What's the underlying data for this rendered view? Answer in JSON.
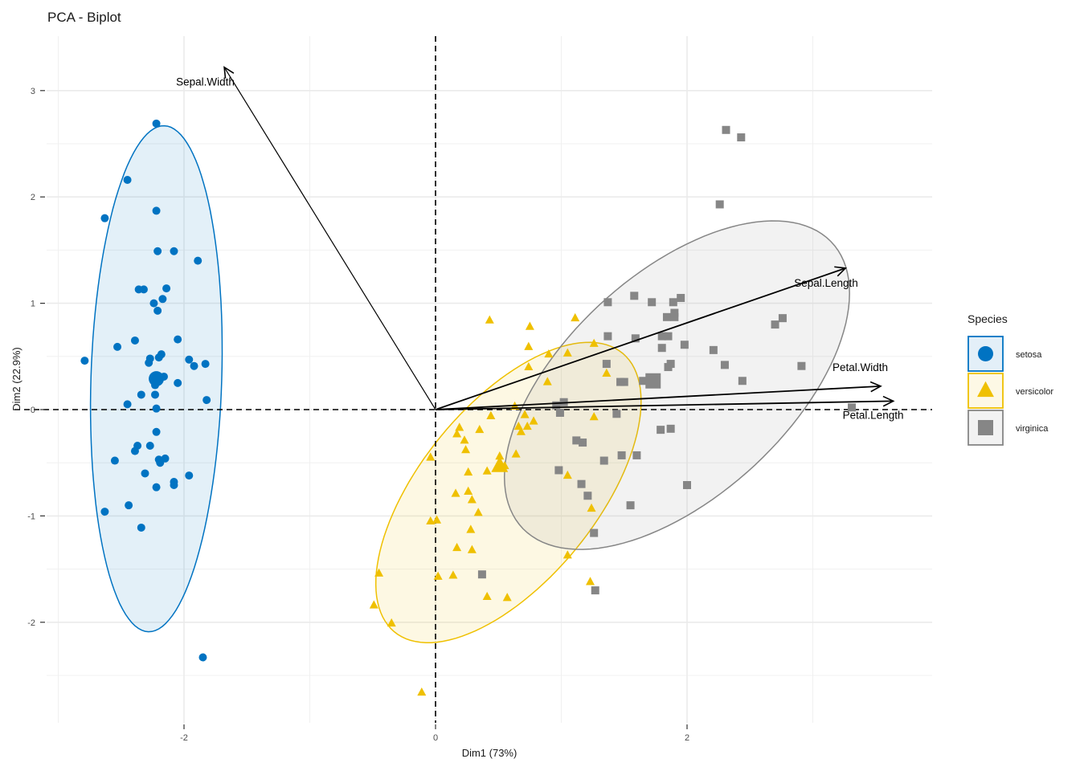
{
  "chart_data": {
    "type": "scatter",
    "title": "PCA - Biplot",
    "xlabel": "Dim1 (73%)",
    "ylabel": "Dim2 (22.9%)",
    "xlim": [
      -3.0,
      3.9
    ],
    "ylim": [
      -2.9,
      3.5
    ],
    "x_ticks": [
      -2,
      0,
      2
    ],
    "y_ticks": [
      -2,
      -1,
      0,
      1,
      2,
      3
    ],
    "x_minor_grid": [
      -3,
      -1,
      1,
      3
    ],
    "y_minor_grid": [
      -2.5,
      -1.5,
      -0.5,
      0.5,
      1.5,
      2.5
    ],
    "grid": true,
    "reference_lines": {
      "x": 0,
      "y": 0,
      "style": "dashed"
    },
    "legend": {
      "title": "Species",
      "position": "right",
      "entries": [
        {
          "label": "setosa",
          "shape": "circle",
          "color": "#0073C2",
          "fill": "#E3EFF8"
        },
        {
          "label": "versicolor",
          "shape": "triangle",
          "color": "#EFC000",
          "fill": "#FDF8E5"
        },
        {
          "label": "virginica",
          "shape": "square",
          "color": "#868686",
          "fill": "#F2F2F2"
        }
      ]
    },
    "series": [
      {
        "name": "setosa",
        "shape": "circle",
        "color": "#0073C2",
        "ellipse": {
          "cx": -2.22,
          "cy": 0.29,
          "rx": 0.52,
          "ry": 2.38,
          "angle_deg": -1.5,
          "fill": "#0073C2",
          "fill_opacity": 0.11
        },
        "centroid": [
          -2.22,
          0.29
        ],
        "points": [
          [
            -2.22,
            2.69
          ],
          [
            -2.45,
            2.16
          ],
          [
            -2.63,
            1.8
          ],
          [
            -2.22,
            1.87
          ],
          [
            -2.21,
            1.49
          ],
          [
            -2.08,
            1.49
          ],
          [
            -1.89,
            1.4
          ],
          [
            -2.36,
            1.13
          ],
          [
            -2.32,
            1.13
          ],
          [
            -2.14,
            1.14
          ],
          [
            -2.24,
            1.0
          ],
          [
            -2.21,
            0.93
          ],
          [
            -2.17,
            1.04
          ],
          [
            -2.05,
            0.66
          ],
          [
            -2.39,
            0.65
          ],
          [
            -2.53,
            0.59
          ],
          [
            -2.79,
            0.46
          ],
          [
            -2.18,
            0.52
          ],
          [
            -2.2,
            0.49
          ],
          [
            -2.27,
            0.48
          ],
          [
            -2.28,
            0.44
          ],
          [
            -1.96,
            0.47
          ],
          [
            -1.92,
            0.41
          ],
          [
            -1.83,
            0.43
          ],
          [
            -2.16,
            0.31
          ],
          [
            -2.2,
            0.27
          ],
          [
            -2.23,
            0.29
          ],
          [
            -2.05,
            0.25
          ],
          [
            -2.23,
            0.23
          ],
          [
            -2.34,
            0.14
          ],
          [
            -2.23,
            0.14
          ],
          [
            -1.82,
            0.09
          ],
          [
            -2.45,
            0.05
          ],
          [
            -2.22,
            0.01
          ],
          [
            -2.22,
            -0.21
          ],
          [
            -2.37,
            -0.34
          ],
          [
            -2.39,
            -0.39
          ],
          [
            -2.27,
            -0.34
          ],
          [
            -2.55,
            -0.48
          ],
          [
            -2.2,
            -0.47
          ],
          [
            -2.15,
            -0.46
          ],
          [
            -2.19,
            -0.5
          ],
          [
            -2.31,
            -0.6
          ],
          [
            -1.96,
            -0.62
          ],
          [
            -2.08,
            -0.68
          ],
          [
            -2.08,
            -0.71
          ],
          [
            -2.22,
            -0.73
          ],
          [
            -2.44,
            -0.9
          ],
          [
            -2.63,
            -0.96
          ],
          [
            -2.34,
            -1.11
          ],
          [
            -1.85,
            -2.33
          ]
        ]
      },
      {
        "name": "versicolor",
        "shape": "triangle",
        "color": "#EFC000",
        "ellipse": {
          "cx": 0.58,
          "cy": -0.78,
          "rx": 1.6,
          "ry": 0.74,
          "angle_deg": 58,
          "fill": "#EFC000",
          "fill_opacity": 0.11
        },
        "centroid": [
          0.51,
          -0.53
        ],
        "points": [
          [
            0.43,
            0.84
          ],
          [
            1.11,
            0.86
          ],
          [
            0.75,
            0.78
          ],
          [
            0.74,
            0.59
          ],
          [
            1.26,
            0.62
          ],
          [
            0.9,
            0.52
          ],
          [
            1.05,
            0.53
          ],
          [
            0.74,
            0.4
          ],
          [
            1.36,
            0.34
          ],
          [
            0.89,
            0.26
          ],
          [
            0.44,
            -0.06
          ],
          [
            0.63,
            0.03
          ],
          [
            0.71,
            -0.05
          ],
          [
            0.73,
            -0.16
          ],
          [
            0.78,
            -0.11
          ],
          [
            0.66,
            -0.16
          ],
          [
            0.68,
            -0.21
          ],
          [
            0.35,
            -0.19
          ],
          [
            1.26,
            -0.07
          ],
          [
            0.19,
            -0.17
          ],
          [
            0.17,
            -0.23
          ],
          [
            0.23,
            -0.29
          ],
          [
            0.24,
            -0.38
          ],
          [
            0.51,
            -0.44
          ],
          [
            0.64,
            -0.42
          ],
          [
            0.51,
            -0.52
          ],
          [
            0.55,
            -0.53
          ],
          [
            0.26,
            -0.59
          ],
          [
            0.41,
            -0.58
          ],
          [
            -0.04,
            -0.45
          ],
          [
            0.26,
            -0.77
          ],
          [
            0.16,
            -0.79
          ],
          [
            0.29,
            -0.85
          ],
          [
            0.34,
            -0.97
          ],
          [
            0.28,
            -1.13
          ],
          [
            -0.04,
            -1.05
          ],
          [
            0.01,
            -1.04
          ],
          [
            0.17,
            -1.3
          ],
          [
            0.29,
            -1.32
          ],
          [
            -0.45,
            -1.54
          ],
          [
            0.02,
            -1.57
          ],
          [
            0.14,
            -1.56
          ],
          [
            -0.49,
            -1.84
          ],
          [
            -0.35,
            -2.01
          ],
          [
            0.41,
            -1.76
          ],
          [
            0.57,
            -1.77
          ],
          [
            -0.11,
            -2.66
          ],
          [
            1.05,
            -0.62
          ],
          [
            1.24,
            -0.93
          ],
          [
            1.05,
            -1.37
          ],
          [
            1.23,
            -1.62
          ]
        ]
      },
      {
        "name": "virginica",
        "shape": "square",
        "color": "#868686",
        "ellipse": {
          "cx": 1.92,
          "cy": 0.23,
          "rx": 1.83,
          "ry": 0.96,
          "angle_deg": 51,
          "fill": "#868686",
          "fill_opacity": 0.11
        },
        "centroid": [
          1.73,
          0.27
        ],
        "points": [
          [
            2.31,
            2.63
          ],
          [
            2.43,
            2.56
          ],
          [
            2.26,
            1.93
          ],
          [
            1.58,
            1.07
          ],
          [
            1.72,
            1.01
          ],
          [
            1.95,
            1.05
          ],
          [
            1.89,
            1.01
          ],
          [
            1.37,
            1.01
          ],
          [
            1.84,
            0.87
          ],
          [
            1.9,
            0.91
          ],
          [
            1.9,
            0.87
          ],
          [
            1.37,
            0.69
          ],
          [
            1.59,
            0.67
          ],
          [
            1.85,
            0.69
          ],
          [
            1.8,
            0.69
          ],
          [
            2.76,
            0.86
          ],
          [
            2.7,
            0.8
          ],
          [
            1.98,
            0.61
          ],
          [
            1.8,
            0.58
          ],
          [
            2.21,
            0.56
          ],
          [
            1.36,
            0.43
          ],
          [
            1.87,
            0.43
          ],
          [
            1.85,
            0.4
          ],
          [
            2.3,
            0.42
          ],
          [
            2.91,
            0.41
          ],
          [
            1.65,
            0.27
          ],
          [
            1.47,
            0.26
          ],
          [
            1.5,
            0.26
          ],
          [
            2.44,
            0.27
          ],
          [
            1.73,
            0.27
          ],
          [
            1.02,
            0.07
          ],
          [
            0.96,
            0.04
          ],
          [
            0.99,
            -0.03
          ],
          [
            1.44,
            -0.04
          ],
          [
            3.31,
            0.02
          ],
          [
            1.79,
            -0.19
          ],
          [
            1.87,
            -0.18
          ],
          [
            1.12,
            -0.29
          ],
          [
            1.17,
            -0.31
          ],
          [
            1.34,
            -0.48
          ],
          [
            1.48,
            -0.43
          ],
          [
            1.6,
            -0.43
          ],
          [
            0.98,
            -0.57
          ],
          [
            2.0,
            -0.71
          ],
          [
            1.16,
            -0.7
          ],
          [
            1.21,
            -0.81
          ],
          [
            1.55,
            -0.9
          ],
          [
            1.26,
            -1.16
          ],
          [
            0.37,
            -1.55
          ],
          [
            1.27,
            -1.7
          ]
        ]
      }
    ],
    "variables": [
      {
        "name": "Sepal.Length",
        "x": 3.26,
        "y": 1.33
      },
      {
        "name": "Sepal.Width",
        "x": -1.68,
        "y": 3.22
      },
      {
        "name": "Petal.Length",
        "x": 3.64,
        "y": 0.08
      },
      {
        "name": "Petal.Width",
        "x": 3.54,
        "y": 0.22
      }
    ]
  }
}
